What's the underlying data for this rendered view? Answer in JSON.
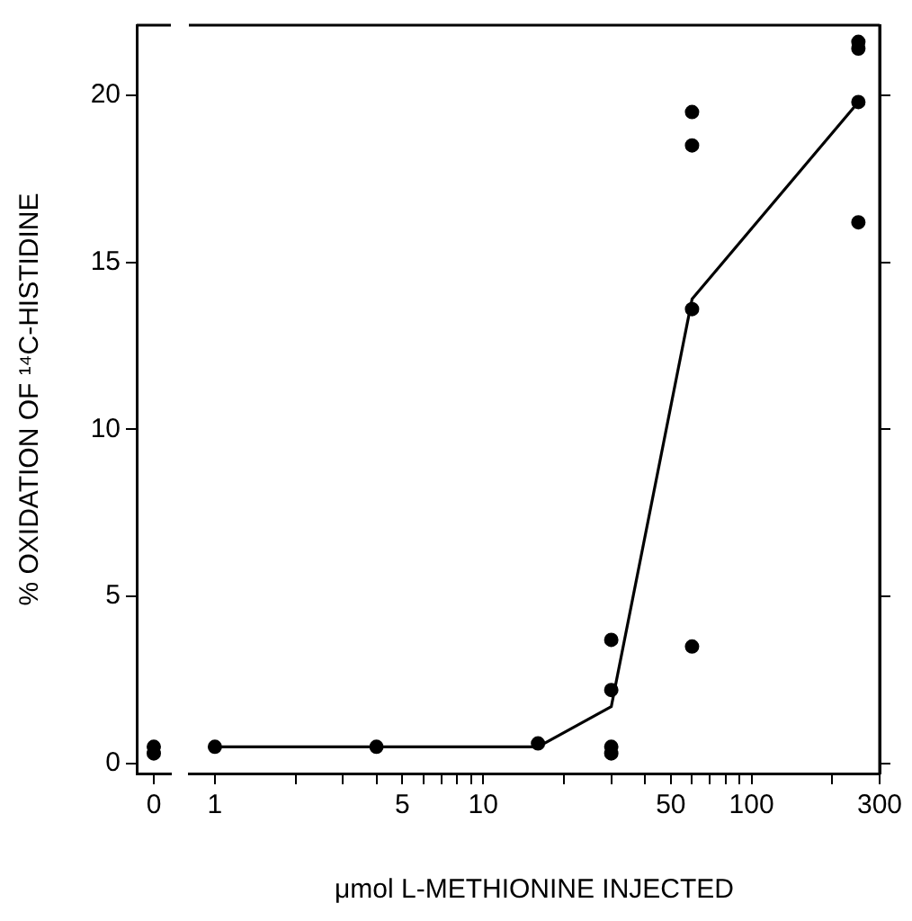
{
  "chart_data": [
    {
      "type": "scatter",
      "ylabel": "% OXIDATION OF ¹⁴C-HISTIDINE",
      "categories": [
        "0"
      ],
      "ylim": [
        -0.3,
        22.1
      ],
      "yticks": [
        0,
        5,
        10,
        15,
        20
      ],
      "grid": false,
      "legend": false,
      "marker": "circle",
      "series": [
        {
          "type": "scatter",
          "color": "#000000",
          "x": [
            "0",
            "0"
          ],
          "values": [
            0.5,
            0.3
          ]
        }
      ]
    },
    {
      "type": "scatter",
      "xlabel": "μmol L-METHIONINE INJECTED",
      "xlim": [
        0.8,
        300
      ],
      "xticks": [
        1,
        {
          "value": 2,
          "label": null
        },
        {
          "value": 3,
          "label": null
        },
        {
          "value": 4,
          "label": null
        },
        5,
        {
          "value": 6,
          "label": null
        },
        {
          "value": 7,
          "label": null
        },
        {
          "value": 8,
          "label": null
        },
        {
          "value": 9,
          "label": null
        },
        10,
        {
          "value": 20,
          "label": null
        },
        {
          "value": 30,
          "label": null
        },
        {
          "value": 40,
          "label": null
        },
        50,
        {
          "value": 60,
          "label": null
        },
        {
          "value": 70,
          "label": null
        },
        {
          "value": 80,
          "label": null
        },
        {
          "value": 90,
          "label": null
        },
        100,
        {
          "value": 200,
          "label": null
        },
        300
      ],
      "ylim": [
        -0.3,
        22.1
      ],
      "yticks": [
        0,
        5,
        10,
        15,
        20
      ],
      "tick_labels": "x",
      "log": "x",
      "grid": false,
      "legend": false,
      "marker": "circle",
      "series": [
        {
          "type": "scatter",
          "color": "#000000",
          "x": [
            1,
            4,
            16,
            30,
            30,
            30,
            30,
            60,
            60,
            60,
            60,
            250,
            250,
            250,
            250
          ],
          "values": [
            0.5,
            0.5,
            0.6,
            3.7,
            2.2,
            0.5,
            0.3,
            3.5,
            13.6,
            18.5,
            19.5,
            21.6,
            21.4,
            19.8,
            16.2
          ]
        },
        {
          "type": "line",
          "color": "#000000",
          "marker": "none",
          "x": [
            1,
            4,
            16,
            30,
            60,
            250
          ],
          "values": [
            0.5,
            0.5,
            0.5,
            1.7,
            13.9,
            19.8
          ]
        }
      ]
    }
  ]
}
